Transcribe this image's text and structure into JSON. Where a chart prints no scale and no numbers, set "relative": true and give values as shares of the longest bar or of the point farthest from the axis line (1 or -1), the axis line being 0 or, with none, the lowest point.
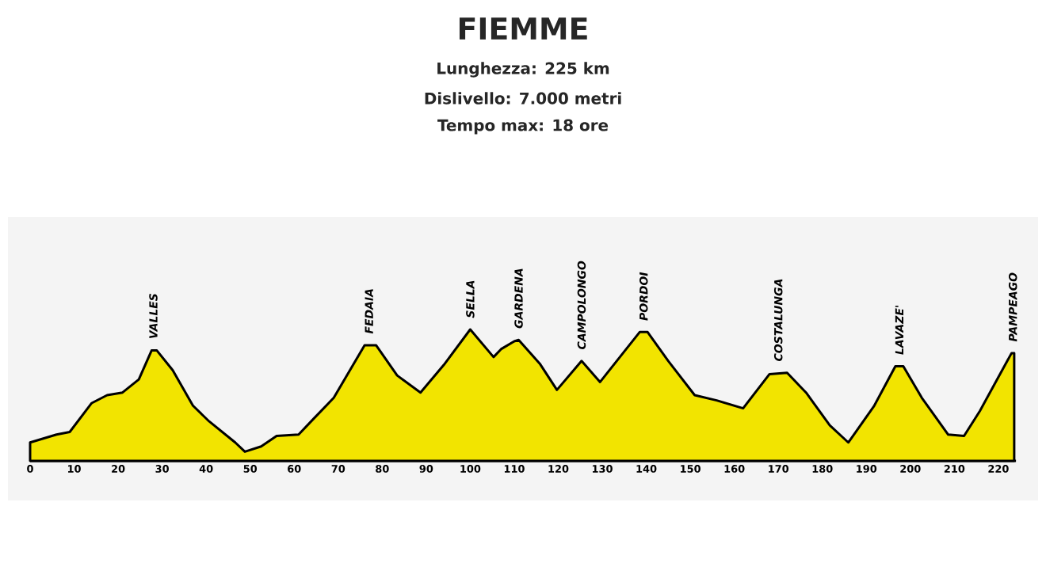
{
  "chart_data": {
    "type": "area",
    "title": "FIEMME",
    "subtitle": "Lunghezza: 225 km",
    "x": [
      0,
      2,
      6,
      9,
      14,
      17.5,
      21,
      24.7,
      27.6,
      28.8,
      32.4,
      37,
      40.7,
      46.6,
      48.8,
      52.5,
      56,
      61,
      64.4,
      69,
      76,
      78.6,
      83.4,
      88.7,
      94,
      100,
      105.3,
      107,
      110,
      111,
      115.8,
      119.7,
      125.3,
      129.5,
      138.5,
      140.3,
      145,
      151,
      156,
      162,
      168,
      172,
      176.3,
      181.7,
      185.9,
      191.8,
      196.6,
      198.4,
      202.6,
      208.6,
      212.2,
      215.8,
      223,
      223.6
    ],
    "values": [
      0.14,
      0.16,
      0.2,
      0.22,
      0.44,
      0.5,
      0.52,
      0.62,
      0.84,
      0.84,
      0.69,
      0.42,
      0.3,
      0.14,
      0.07,
      0.11,
      0.19,
      0.2,
      0.32,
      0.48,
      0.88,
      0.88,
      0.65,
      0.52,
      0.73,
      1.0,
      0.79,
      0.85,
      0.91,
      0.92,
      0.74,
      0.54,
      0.76,
      0.6,
      0.98,
      0.98,
      0.76,
      0.5,
      0.46,
      0.4,
      0.66,
      0.67,
      0.52,
      0.27,
      0.14,
      0.42,
      0.72,
      0.72,
      0.48,
      0.2,
      0.19,
      0.38,
      0.82,
      0.82
    ],
    "color": "#f2e400",
    "relative": true,
    "xlim": [
      0,
      224
    ],
    "xticks": [
      0,
      10,
      20,
      30,
      40,
      50,
      60,
      70,
      80,
      90,
      100,
      110,
      120,
      130,
      140,
      150,
      160,
      170,
      180,
      190,
      200,
      210,
      220
    ],
    "annotations": [
      "Dislivello: 7.000 metri",
      "Tempo max: 18 ore",
      {
        "text": "VALLES",
        "x": 28,
        "y": 0.84
      },
      {
        "text": "FEDAIA",
        "x": 77,
        "y": 0.88
      },
      {
        "text": "SELLA",
        "x": 100,
        "y": 1.0
      },
      {
        "text": "GARDENA",
        "x": 111,
        "y": 0.92
      },
      {
        "text": "CAMPOLONGO",
        "x": 125.3,
        "y": 0.76
      },
      {
        "text": "PORDOI",
        "x": 139.4,
        "y": 0.98
      },
      {
        "text": "COSTALUNGA",
        "x": 170,
        "y": 0.67
      },
      {
        "text": "LAVAZE'",
        "x": 197.5,
        "y": 0.72
      },
      {
        "text": "PAMPEAGO",
        "x": 223.3,
        "y": 0.82
      }
    ]
  }
}
